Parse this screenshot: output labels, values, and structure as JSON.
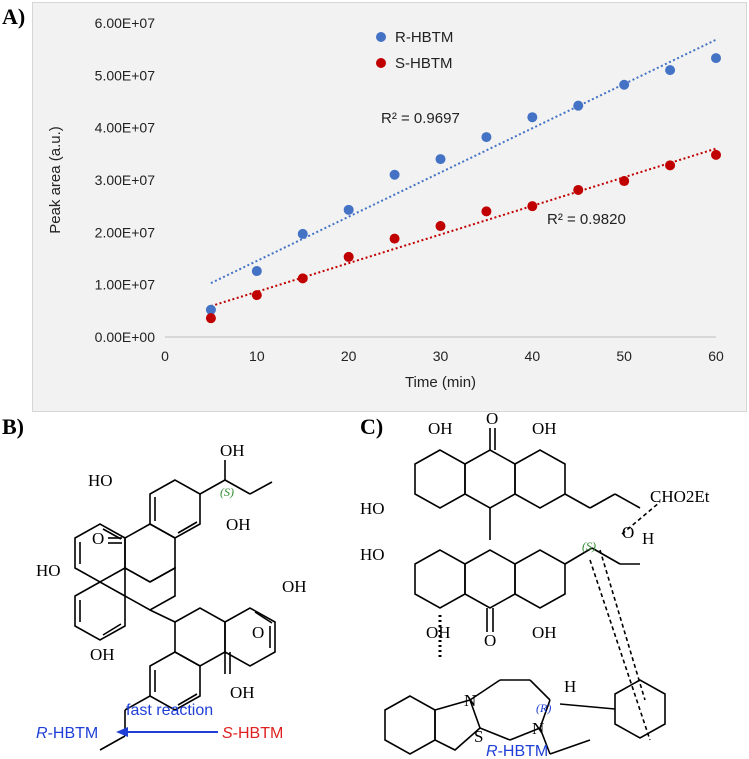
{
  "panels": {
    "a_label": "A)",
    "b_label": "B)",
    "c_label": "C)"
  },
  "chart_data": {
    "type": "scatter",
    "xlabel": "Time (min)",
    "ylabel": "Peak area (a.u.)",
    "xlim": [
      0,
      60
    ],
    "ylim": [
      0,
      60000000
    ],
    "x_ticks": [
      "0",
      "10",
      "20",
      "30",
      "40",
      "50",
      "60"
    ],
    "y_ticks": [
      "0.00E+00",
      "1.00E+07",
      "2.00E+07",
      "3.00E+07",
      "4.00E+07",
      "5.00E+07",
      "6.00E+07"
    ],
    "grid": false,
    "legend_position": "top-center",
    "series": [
      {
        "name": "R-HBTM",
        "color": "#4472c4",
        "x": [
          5,
          10,
          15,
          20,
          25,
          30,
          35,
          40,
          45,
          50,
          55,
          60
        ],
        "y": [
          5200000,
          12600000,
          19700000,
          24300000,
          31000000,
          34000000,
          38200000,
          42000000,
          44200000,
          48200000,
          51000000,
          53300000
        ],
        "trendline": {
          "x": [
            5,
            60
          ],
          "y": [
            10300000,
            56800000
          ]
        },
        "r2": "R² = 0.9697"
      },
      {
        "name": "S-HBTM",
        "color": "#c00000",
        "x": [
          5,
          10,
          15,
          20,
          25,
          30,
          35,
          40,
          45,
          50,
          55,
          60
        ],
        "y": [
          3600000,
          8000000,
          11200000,
          15300000,
          18800000,
          21200000,
          24000000,
          25000000,
          28100000,
          29800000,
          32800000,
          34800000
        ],
        "trendline": {
          "x": [
            5,
            60
          ],
          "y": [
            5900000,
            36000000
          ]
        },
        "r2": "R² = 0.9820"
      }
    ]
  },
  "structure_b": {
    "labels": [
      "HO",
      "OH",
      "(S)",
      "O",
      "OH",
      "HO",
      "OH",
      "OH",
      "O",
      "OH",
      "OH"
    ],
    "arrow_caption": "fast reaction",
    "left_prefix": "R",
    "left_suffix": "-HBTM",
    "right_prefix": "S",
    "right_suffix": "-HBTM"
  },
  "structure_c": {
    "labels": [
      "OH",
      "O",
      "OH",
      "HO",
      "CHO2Et",
      "O",
      "H",
      "(S)",
      "HO",
      "OH",
      "OH",
      "O",
      "OH",
      "N",
      "(R)",
      "H",
      "N",
      "S",
      "O"
    ],
    "catalyst_prefix": "R",
    "catalyst_suffix": "-HBTM"
  },
  "colors": {
    "blue": "#1f3fd6",
    "red": "#e02020",
    "green": "#2e8b2e"
  }
}
